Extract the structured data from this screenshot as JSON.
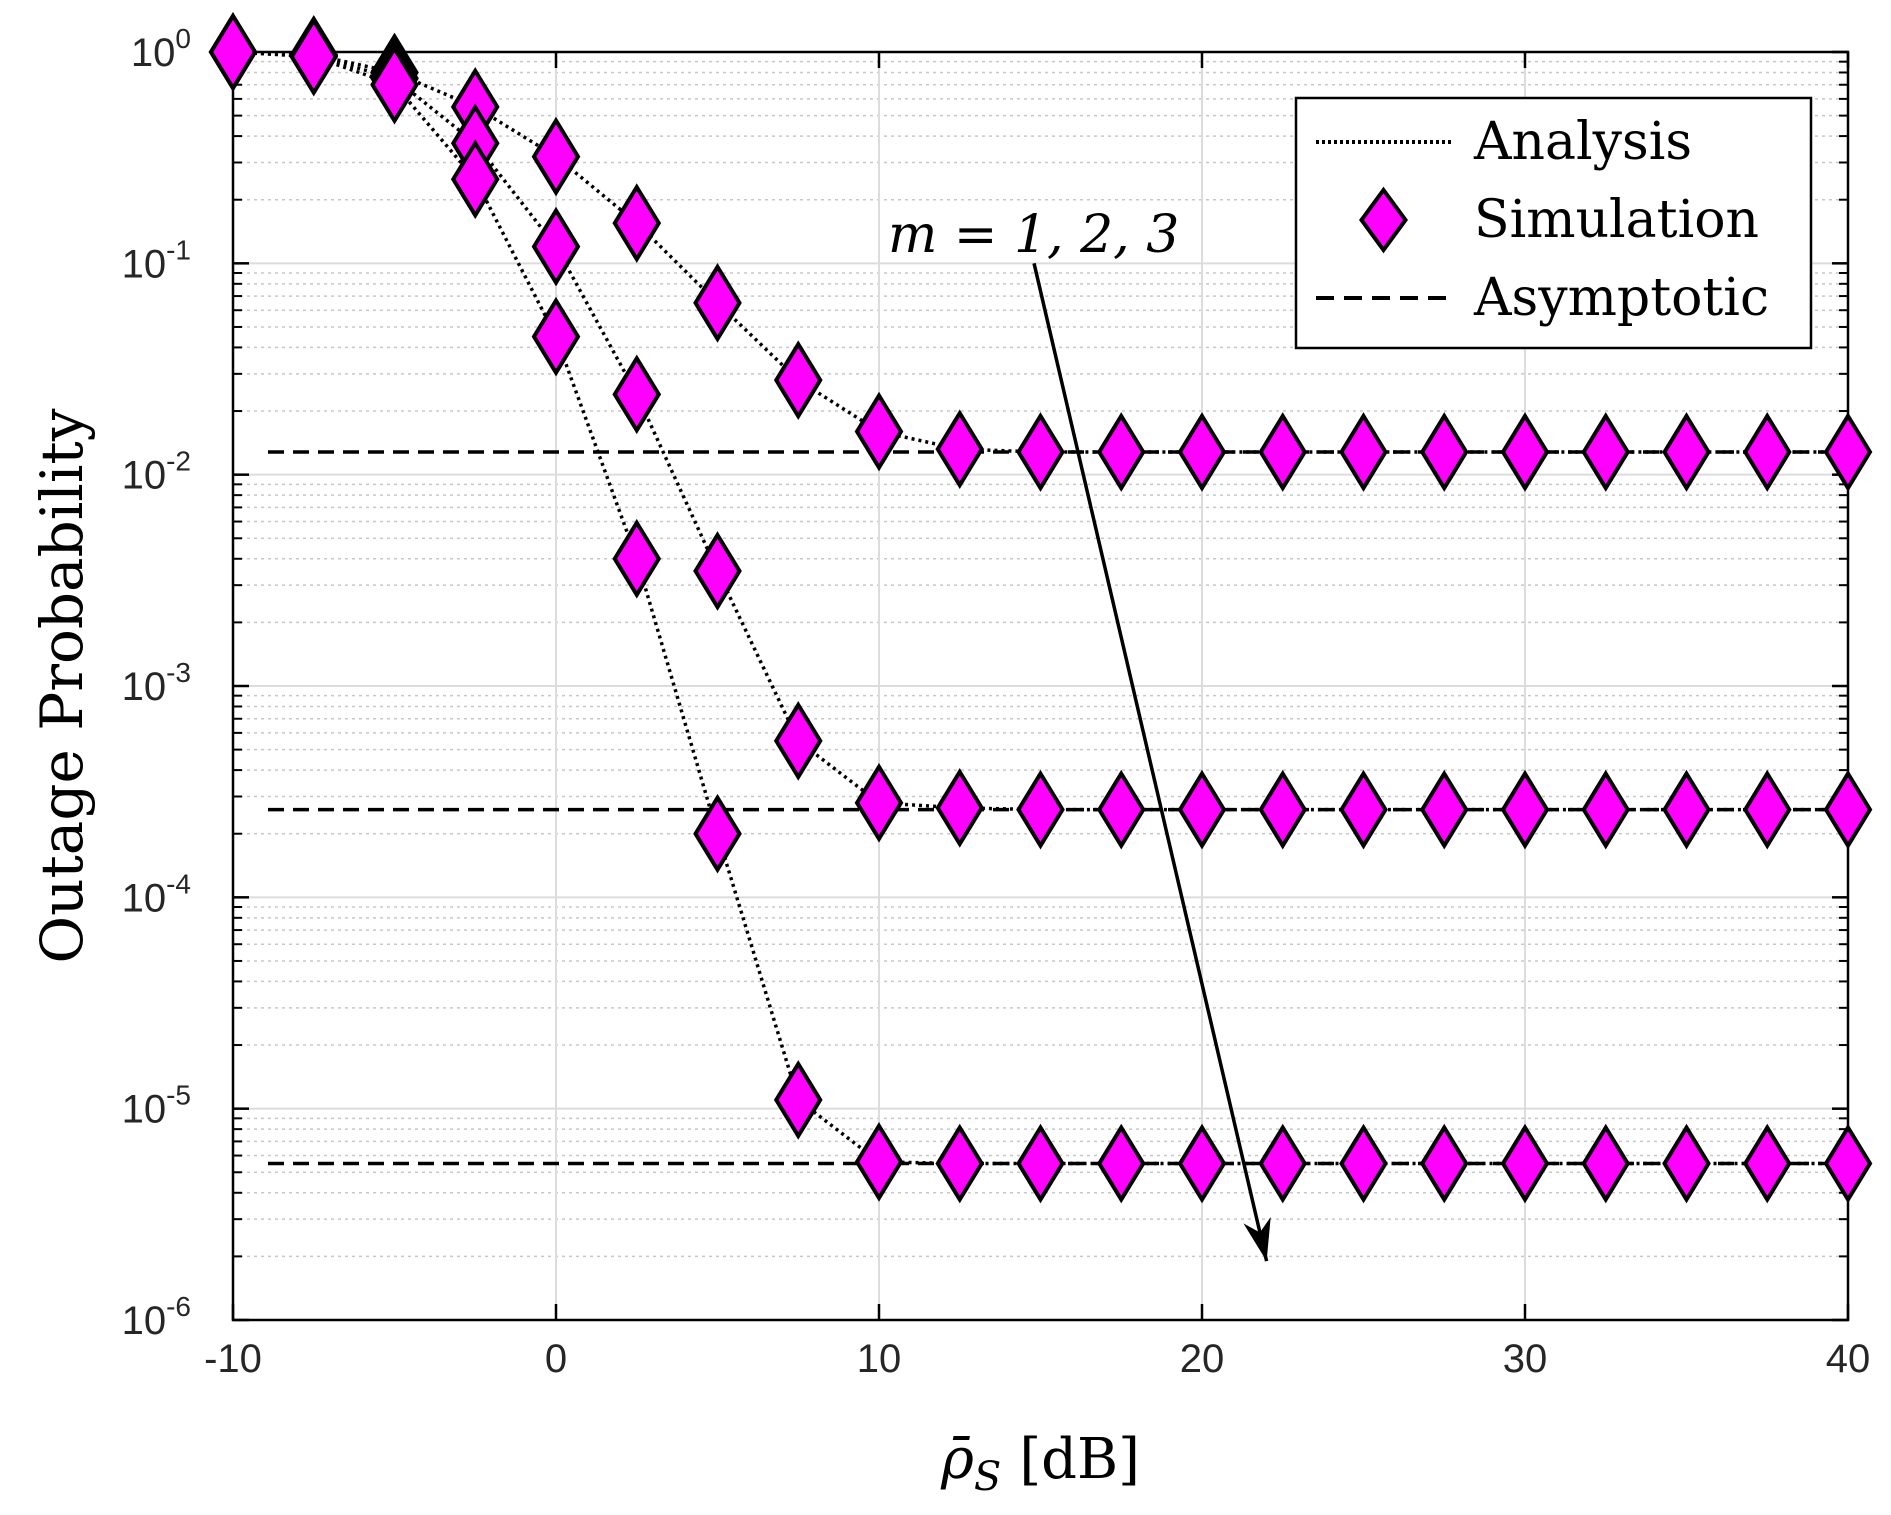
{
  "chart_data": {
    "type": "line",
    "xlabel": "ρ̄",
    "xlabel_subscript": "S",
    "xlabel_unit": "[dB]",
    "ylabel": "Outage Probability",
    "xlim": [
      -10,
      40
    ],
    "ylim": [
      1e-06,
      1
    ],
    "yscale": "log",
    "grid": true,
    "minor_grid": true,
    "x_ticks": [
      -10,
      0,
      10,
      20,
      30,
      40
    ],
    "x_tick_labels": [
      "-10",
      "0",
      "10",
      "20",
      "30",
      "40"
    ],
    "y_ticks": [
      {
        "value": 1,
        "base": "10",
        "exp": "0"
      },
      {
        "value": 0.1,
        "base": "10",
        "exp": "-1"
      },
      {
        "value": 0.01,
        "base": "10",
        "exp": "-2"
      },
      {
        "value": 0.001,
        "base": "10",
        "exp": "-3"
      },
      {
        "value": 0.0001,
        "base": "10",
        "exp": "-4"
      },
      {
        "value": 1e-05,
        "base": "10",
        "exp": "-5"
      },
      {
        "value": 1e-06,
        "base": "10",
        "exp": "-6"
      }
    ],
    "legend": {
      "placement": "top-right",
      "entries": [
        {
          "label": "Analysis",
          "style": "dotted"
        },
        {
          "label": "Simulation",
          "style": "diamond-marker"
        },
        {
          "label": "Asymptotic",
          "style": "dashed"
        }
      ]
    },
    "annotation": {
      "text": "m = 1, 2, 3",
      "arrow_from": [
        14.8,
        0.1
      ],
      "arrow_to": [
        22.0,
        1.9e-06
      ]
    },
    "marker_color": "#ff00ff",
    "line_color": "#000000",
    "x": [
      -10,
      -7.5,
      -5,
      -2.5,
      0,
      2.5,
      5,
      7.5,
      10,
      12.5,
      15,
      17.5,
      20,
      22.5,
      25,
      27.5,
      30,
      32.5,
      35,
      37.5,
      40
    ],
    "series": [
      {
        "values": [
          1.0,
          0.97,
          0.8,
          0.55,
          0.32,
          0.155,
          0.065,
          0.028,
          0.016,
          0.0132,
          0.0128,
          0.0128,
          0.0128,
          0.0128,
          0.0128,
          0.0128,
          0.0128,
          0.0128,
          0.0128,
          0.0128,
          0.0128
        ]
      },
      {
        "values": [
          1.0,
          0.96,
          0.75,
          0.37,
          0.12,
          0.024,
          0.0035,
          0.00055,
          0.00028,
          0.000265,
          0.00026,
          0.00026,
          0.00026,
          0.00026,
          0.00026,
          0.00026,
          0.00026,
          0.00026,
          0.00026,
          0.00026,
          0.00026
        ]
      },
      {
        "values": [
          1.0,
          0.95,
          0.7,
          0.25,
          0.045,
          0.004,
          0.0002,
          1.1e-05,
          5.6e-06,
          5.5e-06,
          5.5e-06,
          5.5e-06,
          5.5e-06,
          5.5e-06,
          5.5e-06,
          5.5e-06,
          5.5e-06,
          5.5e-06,
          5.5e-06,
          5.5e-06,
          5.5e-06
        ]
      }
    ],
    "asymptotes": [
      0.0128,
      0.00026,
      5.5e-06
    ]
  }
}
